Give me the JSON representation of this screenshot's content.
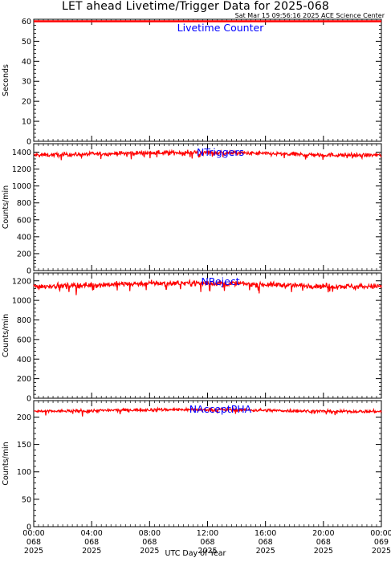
{
  "title": "LET ahead Livetime/Trigger Data for 2025-068",
  "timestamp": "Sat Mar 15 09:56:16 2025 ACE Science Center",
  "x_axis_title": "UTC Day of Year",
  "colors": {
    "series": "#ff0000",
    "panel_label": "#0000ff",
    "axes": "#000000"
  },
  "chart_data": [
    {
      "type": "line",
      "label": "Livetime Counter",
      "ylabel": "Seconds",
      "ylim": [
        0,
        61
      ],
      "yticks": [
        0,
        10,
        20,
        30,
        40,
        50,
        60
      ],
      "level": 60,
      "noise": 0,
      "x_range_hours": [
        0,
        24
      ]
    },
    {
      "type": "line",
      "label": "NTriggers",
      "ylabel": "Counts/min",
      "ylim": [
        0,
        1500
      ],
      "yticks": [
        0,
        200,
        400,
        600,
        800,
        1000,
        1200,
        1400
      ],
      "level": 1380,
      "noise": 45,
      "x_range_hours": [
        0,
        24
      ]
    },
    {
      "type": "line",
      "label": "NReject",
      "ylabel": "Counts/min",
      "ylim": [
        0,
        1280
      ],
      "yticks": [
        0,
        200,
        400,
        600,
        800,
        1000,
        1200
      ],
      "level": 1160,
      "noise": 50,
      "x_range_hours": [
        0,
        24
      ]
    },
    {
      "type": "line",
      "label": "NAcceptPHA",
      "ylabel": "Counts/min",
      "ylim": [
        0,
        230
      ],
      "yticks": [
        0,
        50,
        100,
        150,
        200
      ],
      "level": 212,
      "noise": 5,
      "x_range_hours": [
        0,
        24
      ]
    }
  ],
  "x_ticks": [
    {
      "time": "00:00",
      "doy": "068",
      "year": "2025"
    },
    {
      "time": "04:00",
      "doy": "068",
      "year": "2025"
    },
    {
      "time": "08:00",
      "doy": "068",
      "year": "2025"
    },
    {
      "time": "12:00",
      "doy": "068",
      "year": "2025"
    },
    {
      "time": "16:00",
      "doy": "068",
      "year": "2025"
    },
    {
      "time": "20:00",
      "doy": "068",
      "year": "2025"
    },
    {
      "time": "00:00",
      "doy": "069",
      "year": "2025"
    }
  ]
}
